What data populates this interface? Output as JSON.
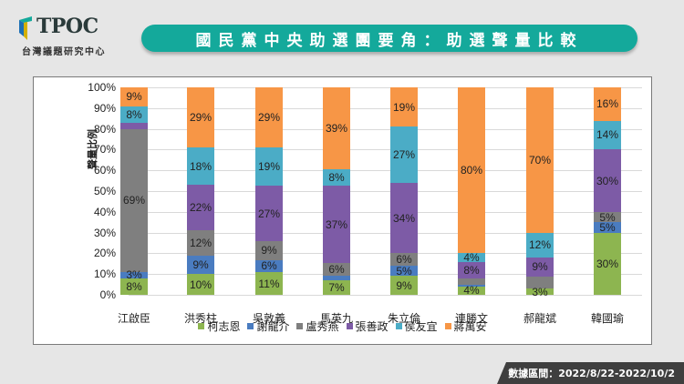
{
  "logo": {
    "name": "TPOC",
    "subtitle": "台灣議題研究中心"
  },
  "title": "國民黨中央助選團要角：助選聲量比較",
  "footer": "數據區間：2022/8/22-2022/10/2",
  "colors": {
    "柯志恩": "#8db550",
    "謝龍介": "#4a7cc0",
    "盧秀燕": "#7f7f7f",
    "張善政": "#7d5ba6",
    "侯友宜": "#4bacc6",
    "蔣萬安": "#f79646",
    "brand": "#14a99b"
  },
  "chart_data": {
    "type": "bar",
    "stacked": true,
    "normalized": true,
    "title": "國民黨中央助選團要角：助選聲量比較",
    "xlabel": "",
    "ylabel": "聲量比例",
    "ylim": [
      0,
      100
    ],
    "yticks": [
      "0%",
      "10%",
      "20%",
      "30%",
      "40%",
      "50%",
      "60%",
      "70%",
      "80%",
      "90%",
      "100%"
    ],
    "grid": true,
    "legend_position": "bottom",
    "categories": [
      "江啟臣",
      "洪秀柱",
      "吳敦義",
      "馬英九",
      "朱立倫",
      "連勝文",
      "郝龍斌",
      "韓國瑜"
    ],
    "series": [
      {
        "name": "柯志恩",
        "color": "#8db550",
        "values": [
          8,
          10,
          11,
          7,
          9,
          4,
          3,
          30
        ],
        "labels": [
          "8%",
          "10%",
          "11%",
          "7%",
          "9%",
          "4%",
          "3%",
          "30%"
        ]
      },
      {
        "name": "謝龍介",
        "color": "#4a7cc0",
        "values": [
          3,
          9,
          6,
          2,
          5,
          1,
          0,
          5
        ],
        "labels": [
          "3%",
          "9%",
          "6%",
          "",
          "5%",
          "",
          "",
          "5%"
        ]
      },
      {
        "name": "盧秀燕",
        "color": "#7f7f7f",
        "values": [
          69,
          12,
          9,
          6,
          6,
          3,
          6,
          5
        ],
        "labels": [
          "69%",
          "12%",
          "9%",
          "6%",
          "6%",
          "",
          "",
          "5%"
        ]
      },
      {
        "name": "張善政",
        "color": "#7d5ba6",
        "values": [
          3,
          22,
          27,
          37,
          34,
          8,
          9,
          30
        ],
        "labels": [
          "",
          "22%",
          "27%",
          "37%",
          "34%",
          "8%",
          "9%",
          "30%"
        ]
      },
      {
        "name": "侯友宜",
        "color": "#4bacc6",
        "values": [
          8,
          18,
          19,
          8,
          27,
          4,
          12,
          14
        ],
        "labels": [
          "8%",
          "18%",
          "19%",
          "8%",
          "27%",
          "4%",
          "12%",
          "14%"
        ]
      },
      {
        "name": "蔣萬安",
        "color": "#f79646",
        "values": [
          9,
          29,
          29,
          39,
          19,
          80,
          70,
          16
        ],
        "labels": [
          "9%",
          "29%",
          "29%",
          "39%",
          "19%",
          "80%",
          "70%",
          "16%"
        ]
      }
    ]
  }
}
